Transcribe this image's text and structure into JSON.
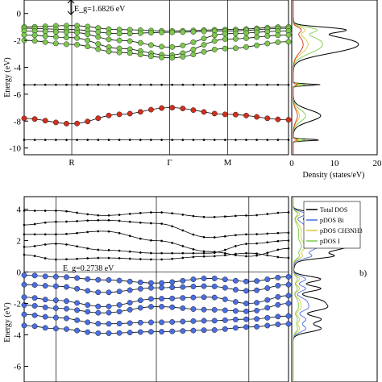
{
  "chart_data": [
    {
      "type": "line",
      "panel": "a",
      "ylabel": "Energy (eV)",
      "ylim": [
        -10.5,
        1
      ],
      "yticks": [
        -10,
        -8,
        -6,
        -4,
        -2,
        0
      ],
      "kpoints": [
        "R",
        "Γ",
        "M"
      ],
      "kpoint_x": [
        0.18,
        0.55,
        0.77
      ],
      "annotation": "E_g=1.6826 eV",
      "dos_xlabel": "Density (states/eV)",
      "dos_xlim": [
        0,
        20
      ],
      "dos_xticks": [
        "0",
        "10",
        "20"
      ],
      "series": [
        {
          "color": "#7ec850",
          "x": [
            0,
            0.18,
            0.36,
            0.55,
            0.77,
            1.0
          ],
          "values": [
            -1.0,
            -0.9,
            -1.2,
            -1.3,
            -1.2,
            -1.0
          ]
        },
        {
          "color": "#7ec850",
          "x": [
            0,
            0.18,
            0.36,
            0.55,
            0.77,
            1.0
          ],
          "values": [
            -1.1,
            -1.2,
            -1.5,
            -1.4,
            -1.3,
            -1.1
          ]
        },
        {
          "color": "#7ec850",
          "x": [
            0,
            0.18,
            0.36,
            0.55,
            0.77,
            1.0
          ],
          "values": [
            -1.3,
            -1.4,
            -2.0,
            -2.5,
            -1.5,
            -1.3
          ]
        },
        {
          "color": "#7ec850",
          "x": [
            0,
            0.18,
            0.36,
            0.55,
            0.77,
            1.0
          ],
          "values": [
            -1.6,
            -1.8,
            -2.6,
            -3.1,
            -1.9,
            -1.6
          ]
        },
        {
          "color": "#7ec850",
          "x": [
            0,
            0.18,
            0.36,
            0.55,
            0.77,
            1.0
          ],
          "values": [
            -2.0,
            -2.3,
            -2.9,
            -3.3,
            -2.6,
            -2.1
          ]
        },
        {
          "color": "#000000",
          "x": [
            0,
            0.18,
            0.36,
            0.55,
            0.77,
            1.0
          ],
          "values": [
            -5.3,
            -5.3,
            -5.3,
            -5.3,
            -5.3,
            -5.3
          ]
        },
        {
          "color": "#d0301f",
          "x": [
            0,
            0.18,
            0.36,
            0.55,
            0.77,
            1.0
          ],
          "values": [
            -7.8,
            -8.2,
            -7.5,
            -7.0,
            -7.5,
            -7.9
          ]
        },
        {
          "color": "#000000",
          "x": [
            0,
            0.18,
            0.36,
            0.55,
            0.77,
            1.0
          ],
          "values": [
            -9.4,
            -9.4,
            -9.4,
            -9.4,
            -9.4,
            -9.4
          ]
        }
      ]
    },
    {
      "type": "line",
      "panel": "b",
      "ylabel": "Energy (eV)",
      "ylim": [
        -7,
        4.8
      ],
      "yticks": [
        -6,
        -4,
        -2,
        0,
        2,
        4
      ],
      "annotation": "E_g=0.2738 eV",
      "legend": [
        "Total DOS",
        "pDOS Bi",
        "pDOS CH3NH3",
        "pDOS I"
      ],
      "legend_colors": [
        "#000000",
        "#4a6ee0",
        "#d7cc35",
        "#7ec850"
      ],
      "legend_position": "top-right",
      "panel_label": "b)",
      "series": [
        {
          "color": "#000000",
          "x": [
            0,
            0.12,
            0.3,
            0.5,
            0.7,
            0.85,
            1.0
          ],
          "values": [
            3.9,
            3.9,
            3.6,
            3.8,
            3.5,
            3.6,
            3.8
          ]
        },
        {
          "color": "#000000",
          "x": [
            0,
            0.12,
            0.3,
            0.5,
            0.7,
            0.85,
            1.0
          ],
          "values": [
            3.0,
            3.2,
            3.3,
            3.1,
            2.2,
            2.4,
            2.5
          ]
        },
        {
          "color": "#000000",
          "x": [
            0,
            0.12,
            0.3,
            0.5,
            0.7,
            0.85,
            1.0
          ],
          "values": [
            2.4,
            2.4,
            2.6,
            2.0,
            1.3,
            1.0,
            1.5
          ]
        },
        {
          "color": "#000000",
          "x": [
            0,
            0.12,
            0.3,
            0.5,
            0.7,
            0.85,
            1.0
          ],
          "values": [
            1.6,
            1.8,
            1.4,
            1.2,
            1.2,
            1.8,
            2.0
          ]
        },
        {
          "color": "#000000",
          "x": [
            0,
            0.12,
            0.3,
            0.5,
            0.7,
            0.85,
            1.0
          ],
          "values": [
            1.1,
            0.8,
            0.9,
            0.8,
            1.0,
            1.2,
            0.9
          ]
        },
        {
          "color": "#4a6ee0",
          "x": [
            0,
            0.12,
            0.3,
            0.5,
            0.7,
            0.85,
            1.0
          ],
          "values": [
            -0.2,
            -0.3,
            -0.5,
            -0.7,
            -0.4,
            -0.6,
            -0.3
          ]
        },
        {
          "color": "#4a6ee0",
          "x": [
            0,
            0.12,
            0.3,
            0.5,
            0.7,
            0.85,
            1.0
          ],
          "values": [
            -0.8,
            -0.9,
            -1.3,
            -1.0,
            -0.9,
            -1.2,
            -0.8
          ]
        },
        {
          "color": "#4a6ee0",
          "x": [
            0,
            0.12,
            0.3,
            0.5,
            0.7,
            0.85,
            1.0
          ],
          "values": [
            -1.6,
            -1.8,
            -2.2,
            -1.7,
            -1.6,
            -2.0,
            -1.5
          ]
        },
        {
          "color": "#4a6ee0",
          "x": [
            0,
            0.12,
            0.3,
            0.5,
            0.7,
            0.85,
            1.0
          ],
          "values": [
            -2.1,
            -2.3,
            -2.6,
            -2.2,
            -2.4,
            -2.5,
            -2.0
          ]
        },
        {
          "color": "#4a6ee0",
          "x": [
            0,
            0.12,
            0.3,
            0.5,
            0.7,
            0.85,
            1.0
          ],
          "values": [
            -2.7,
            -2.9,
            -3.3,
            -3.2,
            -3.1,
            -3.0,
            -2.8
          ]
        },
        {
          "color": "#4a6ee0",
          "x": [
            0,
            0.12,
            0.3,
            0.5,
            0.7,
            0.85,
            1.0
          ],
          "values": [
            -3.4,
            -3.6,
            -3.9,
            -3.8,
            -3.7,
            -3.5,
            -3.3
          ]
        }
      ]
    }
  ]
}
